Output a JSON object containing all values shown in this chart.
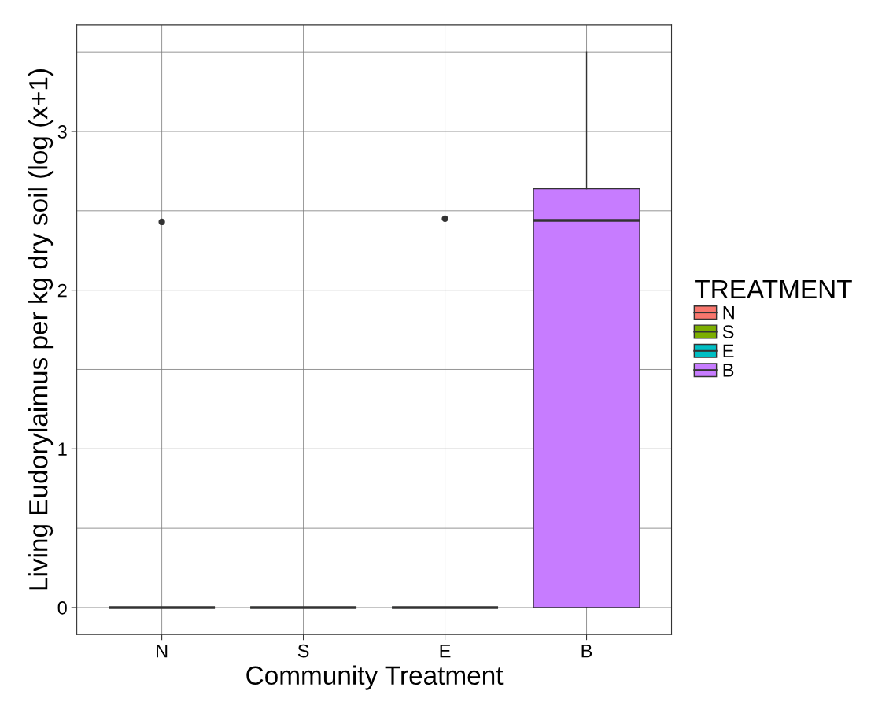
{
  "chart_data": {
    "type": "box",
    "xlabel": "Community Treatment",
    "ylabel": "Living Eudorylaimus per kg dry soil (log (x+1)",
    "legend_title": "TREATMENT",
    "categories": [
      "N",
      "S",
      "E",
      "B"
    ],
    "series": [
      {
        "name": "N",
        "color": "#f8766d",
        "boxes": [
          {
            "low": 0,
            "q1": 0,
            "median": 0,
            "q3": 0,
            "high": 0,
            "outliers": [
              2.43
            ]
          },
          null,
          null,
          null
        ]
      },
      {
        "name": "S",
        "color": "#7cae00",
        "boxes": [
          null,
          {
            "low": 0,
            "q1": 0,
            "median": 0,
            "q3": 0,
            "high": 0
          },
          null,
          null
        ]
      },
      {
        "name": "E",
        "color": "#00bfc4",
        "boxes": [
          null,
          null,
          {
            "low": 0,
            "q1": 0,
            "median": 0,
            "q3": 0,
            "high": 0,
            "outliers": [
              2.45
            ]
          },
          null
        ]
      },
      {
        "name": "B",
        "color": "#c77cff",
        "boxes": [
          null,
          null,
          null,
          {
            "low": 0,
            "q1": 0,
            "median": 2.44,
            "q3": 2.64,
            "high": 3.5
          }
        ]
      }
    ],
    "ylim": [
      -0.17,
      3.67
    ],
    "yticks": [
      0,
      {
        "value": 0.5,
        "label": null
      },
      1,
      {
        "value": 1.5,
        "label": null
      },
      2,
      {
        "value": 2.5,
        "label": null
      },
      3,
      {
        "value": 3.5,
        "label": null
      }
    ],
    "grid": true,
    "legend": "right"
  }
}
